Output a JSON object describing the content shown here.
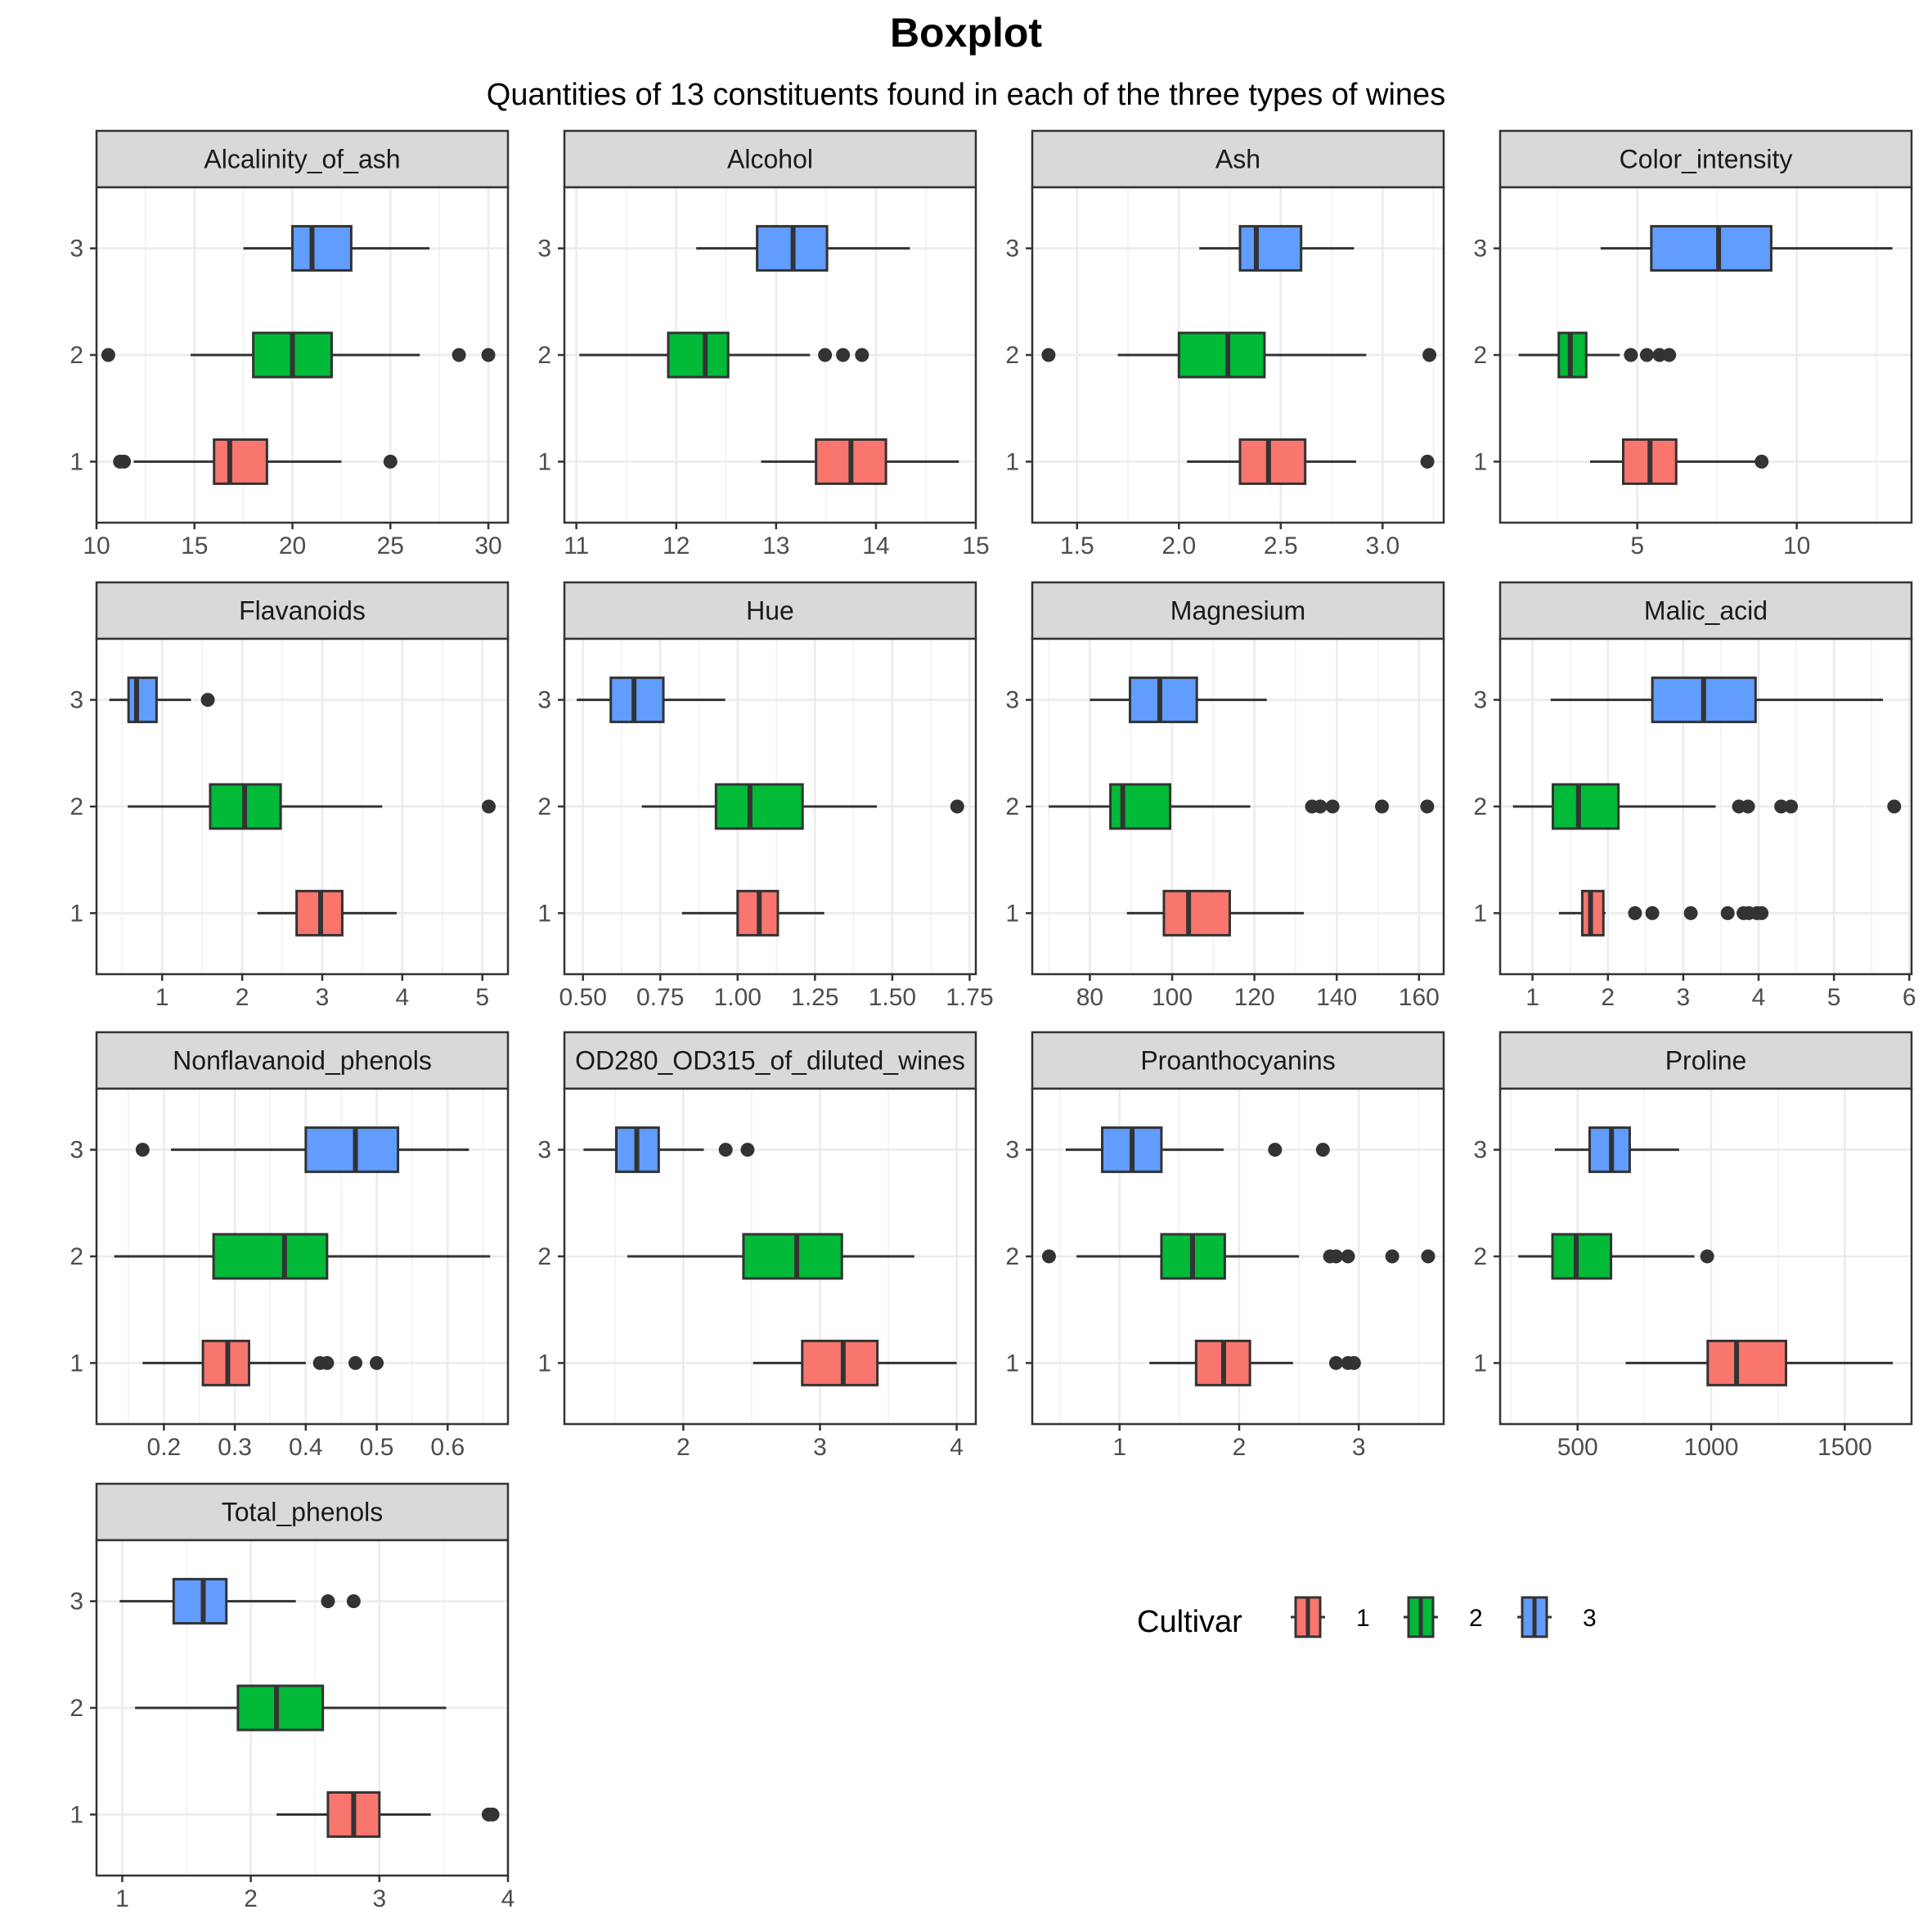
{
  "title": "Boxplot",
  "subtitle": "Quantities of 13 constituents found in each of the three types of wines",
  "colors": {
    "1": "#F8766D",
    "2": "#00BA38",
    "3": "#619CFF"
  },
  "legend": {
    "title": "Cultivar",
    "items": [
      "1",
      "2",
      "3"
    ]
  },
  "chart_data": {
    "type": "boxplot",
    "orientation": "horizontal",
    "facet_by": "Constituent",
    "y_categories": [
      "1",
      "2",
      "3"
    ],
    "grid": true,
    "legend_placement": "bottom-right",
    "panels": [
      {
        "name": "Alcalinity_of_ash",
        "xlim": [
          10.0,
          31.0
        ],
        "ticks": [
          10,
          15,
          20,
          25,
          30
        ],
        "tick_labels": [
          "10",
          "15",
          "20",
          "25",
          "30"
        ],
        "boxes": [
          {
            "cultivar": "1",
            "min": 11.9,
            "q1": 16.0,
            "median": 16.8,
            "q3": 18.7,
            "max": 22.5,
            "outliers": [
              11.2,
              11.4,
              25.0
            ]
          },
          {
            "cultivar": "2",
            "min": 14.8,
            "q1": 18.0,
            "median": 20.0,
            "q3": 22.0,
            "max": 26.5,
            "outliers": [
              10.6,
              28.5,
              30.0
            ]
          },
          {
            "cultivar": "3",
            "min": 17.5,
            "q1": 20.0,
            "median": 21.0,
            "q3": 23.0,
            "max": 27.0,
            "outliers": []
          }
        ]
      },
      {
        "name": "Alcohol",
        "xlim": [
          10.88,
          15.0
        ],
        "ticks": [
          11,
          12,
          13,
          14,
          15
        ],
        "tick_labels": [
          "11",
          "12",
          "13",
          "14",
          "15"
        ],
        "boxes": [
          {
            "cultivar": "1",
            "min": 12.85,
            "q1": 13.4,
            "median": 13.75,
            "q3": 14.1,
            "max": 14.83,
            "outliers": []
          },
          {
            "cultivar": "2",
            "min": 11.03,
            "q1": 11.92,
            "median": 12.29,
            "q3": 12.52,
            "max": 13.34,
            "outliers": [
              13.49,
              13.67,
              13.86
            ]
          },
          {
            "cultivar": "3",
            "min": 12.2,
            "q1": 12.81,
            "median": 13.17,
            "q3": 13.51,
            "max": 14.34,
            "outliers": []
          }
        ]
      },
      {
        "name": "Ash",
        "xlim": [
          1.28,
          3.3
        ],
        "ticks": [
          1.5,
          2.0,
          2.5,
          3.0
        ],
        "tick_labels": [
          "1.5",
          "2.0",
          "2.5",
          "3.0"
        ],
        "boxes": [
          {
            "cultivar": "1",
            "min": 2.04,
            "q1": 2.3,
            "median": 2.44,
            "q3": 2.62,
            "max": 2.87,
            "outliers": [
              3.22
            ]
          },
          {
            "cultivar": "2",
            "min": 1.7,
            "q1": 2.0,
            "median": 2.24,
            "q3": 2.42,
            "max": 2.92,
            "outliers": [
              1.36,
              3.23
            ]
          },
          {
            "cultivar": "3",
            "min": 2.1,
            "q1": 2.3,
            "median": 2.38,
            "q3": 2.6,
            "max": 2.86,
            "outliers": []
          }
        ]
      },
      {
        "name": "Color_intensity",
        "xlim": [
          0.7,
          13.6
        ],
        "ticks": [
          5,
          10
        ],
        "tick_labels": [
          "5",
          "10"
        ],
        "boxes": [
          {
            "cultivar": "1",
            "min": 3.52,
            "q1": 4.56,
            "median": 5.4,
            "q3": 6.22,
            "max": 8.9,
            "outliers": [
              8.9
            ]
          },
          {
            "cultivar": "2",
            "min": 1.28,
            "q1": 2.54,
            "median": 2.9,
            "q3": 3.4,
            "max": 4.45,
            "outliers": [
              4.8,
              5.3,
              5.7,
              6.0
            ]
          },
          {
            "cultivar": "3",
            "min": 3.85,
            "q1": 5.44,
            "median": 7.55,
            "q3": 9.2,
            "max": 13.0,
            "outliers": []
          }
        ]
      },
      {
        "name": "Flavanoids",
        "xlim": [
          0.18,
          5.32
        ],
        "ticks": [
          1,
          2,
          3,
          4,
          5
        ],
        "tick_labels": [
          "1",
          "2",
          "3",
          "4",
          "5"
        ],
        "boxes": [
          {
            "cultivar": "1",
            "min": 2.19,
            "q1": 2.68,
            "median": 2.98,
            "q3": 3.25,
            "max": 3.93,
            "outliers": []
          },
          {
            "cultivar": "2",
            "min": 0.57,
            "q1": 1.6,
            "median": 2.03,
            "q3": 2.48,
            "max": 3.75,
            "outliers": [
              5.08
            ]
          },
          {
            "cultivar": "3",
            "min": 0.34,
            "q1": 0.58,
            "median": 0.68,
            "q3": 0.93,
            "max": 1.36,
            "outliers": [
              1.57
            ]
          }
        ]
      },
      {
        "name": "Hue",
        "xlim": [
          0.44,
          1.77
        ],
        "ticks": [
          0.5,
          0.75,
          1.0,
          1.25,
          1.5,
          1.75
        ],
        "tick_labels": [
          "0.50",
          "0.75",
          "1.00",
          "1.25",
          "1.50",
          "1.75"
        ],
        "boxes": [
          {
            "cultivar": "1",
            "min": 0.82,
            "q1": 1.0,
            "median": 1.07,
            "q3": 1.13,
            "max": 1.28,
            "outliers": []
          },
          {
            "cultivar": "2",
            "min": 0.69,
            "q1": 0.93,
            "median": 1.04,
            "q3": 1.21,
            "max": 1.45,
            "outliers": [
              1.71
            ]
          },
          {
            "cultivar": "3",
            "min": 0.48,
            "q1": 0.59,
            "median": 0.665,
            "q3": 0.76,
            "max": 0.96,
            "outliers": []
          }
        ]
      },
      {
        "name": "Magnesium",
        "xlim": [
          66.0,
          166.0
        ],
        "ticks": [
          80,
          100,
          120,
          140,
          160
        ],
        "tick_labels": [
          "80",
          "100",
          "120",
          "140",
          "160"
        ],
        "boxes": [
          {
            "cultivar": "1",
            "min": 89,
            "q1": 98,
            "median": 104,
            "q3": 114,
            "max": 132,
            "outliers": []
          },
          {
            "cultivar": "2",
            "min": 70,
            "q1": 85,
            "median": 88,
            "q3": 99.5,
            "max": 119,
            "outliers": [
              134,
              136,
              139,
              151,
              162
            ]
          },
          {
            "cultivar": "3",
            "min": 80,
            "q1": 89.75,
            "median": 97,
            "q3": 106,
            "max": 123,
            "outliers": []
          }
        ]
      },
      {
        "name": "Malic_acid",
        "xlim": [
          0.57,
          6.03
        ],
        "ticks": [
          1,
          2,
          3,
          4,
          5,
          6
        ],
        "tick_labels": [
          "1",
          "2",
          "3",
          "4",
          "5",
          "6"
        ],
        "boxes": [
          {
            "cultivar": "1",
            "min": 1.35,
            "q1": 1.66,
            "median": 1.77,
            "q3": 1.94,
            "max": 1.97,
            "outliers": [
              2.36,
              2.59,
              3.1,
              3.59,
              3.8,
              3.87,
              3.98,
              4.04
            ]
          },
          {
            "cultivar": "2",
            "min": 0.74,
            "q1": 1.27,
            "median": 1.61,
            "q3": 2.14,
            "max": 3.43,
            "outliers": [
              3.74,
              3.86,
              4.3,
              4.43,
              5.8
            ]
          },
          {
            "cultivar": "3",
            "min": 1.24,
            "q1": 2.59,
            "median": 3.27,
            "q3": 3.96,
            "max": 5.65,
            "outliers": []
          }
        ]
      },
      {
        "name": "Nonflavanoid_phenols",
        "xlim": [
          0.105,
          0.685
        ],
        "ticks": [
          0.2,
          0.3,
          0.4,
          0.5,
          0.6
        ],
        "tick_labels": [
          "0.2",
          "0.3",
          "0.4",
          "0.5",
          "0.6"
        ],
        "boxes": [
          {
            "cultivar": "1",
            "min": 0.17,
            "q1": 0.255,
            "median": 0.29,
            "q3": 0.32,
            "max": 0.4,
            "outliers": [
              0.42,
              0.43,
              0.47,
              0.5
            ]
          },
          {
            "cultivar": "2",
            "min": 0.13,
            "q1": 0.27,
            "median": 0.37,
            "q3": 0.43,
            "max": 0.66,
            "outliers": []
          },
          {
            "cultivar": "3",
            "min": 0.21,
            "q1": 0.4,
            "median": 0.47,
            "q3": 0.53,
            "max": 0.63,
            "outliers": [
              0.17
            ]
          }
        ]
      },
      {
        "name": "OD280_OD315_of_diluted_wines",
        "xlim": [
          1.13,
          4.14
        ],
        "ticks": [
          2,
          3,
          4
        ],
        "tick_labels": [
          "2",
          "3",
          "4"
        ],
        "boxes": [
          {
            "cultivar": "1",
            "min": 2.51,
            "q1": 2.87,
            "median": 3.17,
            "q3": 3.42,
            "max": 4.0,
            "outliers": []
          },
          {
            "cultivar": "2",
            "min": 1.59,
            "q1": 2.44,
            "median": 2.83,
            "q3": 3.16,
            "max": 3.69,
            "outliers": []
          },
          {
            "cultivar": "3",
            "min": 1.27,
            "q1": 1.51,
            "median": 1.66,
            "q3": 1.82,
            "max": 2.15,
            "outliers": [
              2.31,
              2.47
            ]
          }
        ]
      },
      {
        "name": "Proanthocyanins",
        "xlim": [
          0.27,
          3.71
        ],
        "ticks": [
          1,
          2,
          3
        ],
        "tick_labels": [
          "1",
          "2",
          "3"
        ],
        "boxes": [
          {
            "cultivar": "1",
            "min": 1.25,
            "q1": 1.64,
            "median": 1.87,
            "q3": 2.09,
            "max": 2.45,
            "outliers": [
              2.81,
              2.91,
              2.96
            ]
          },
          {
            "cultivar": "2",
            "min": 0.64,
            "q1": 1.35,
            "median": 1.61,
            "q3": 1.88,
            "max": 2.5,
            "outliers": [
              0.41,
              2.76,
              2.81,
              2.91,
              3.28,
              3.58
            ]
          },
          {
            "cultivar": "3",
            "min": 0.55,
            "q1": 0.855,
            "median": 1.105,
            "q3": 1.35,
            "max": 1.87,
            "outliers": [
              2.3,
              2.7
            ]
          }
        ]
      },
      {
        "name": "Proline",
        "xlim": [
          210,
          1750
        ],
        "ticks": [
          500,
          1000,
          1500
        ],
        "tick_labels": [
          "500",
          "1000",
          "1500"
        ],
        "boxes": [
          {
            "cultivar": "1",
            "min": 680,
            "q1": 987,
            "median": 1095,
            "q3": 1280,
            "max": 1680,
            "outliers": []
          },
          {
            "cultivar": "2",
            "min": 278,
            "q1": 406,
            "median": 495,
            "q3": 625,
            "max": 937,
            "outliers": [
              985
            ]
          },
          {
            "cultivar": "3",
            "min": 415,
            "q1": 545,
            "median": 627,
            "q3": 695,
            "max": 880,
            "outliers": []
          }
        ]
      },
      {
        "name": "Total_phenols",
        "xlim": [
          0.8,
          4.0
        ],
        "ticks": [
          1,
          2,
          3,
          4
        ],
        "tick_labels": [
          "1",
          "2",
          "3",
          "4"
        ],
        "boxes": [
          {
            "cultivar": "1",
            "min": 2.2,
            "q1": 2.6,
            "median": 2.8,
            "q3": 3.0,
            "max": 3.4,
            "outliers": [
              3.85,
              3.88
            ]
          },
          {
            "cultivar": "2",
            "min": 1.1,
            "q1": 1.9,
            "median": 2.2,
            "q3": 2.56,
            "max": 3.52,
            "outliers": []
          },
          {
            "cultivar": "3",
            "min": 0.98,
            "q1": 1.4,
            "median": 1.63,
            "q3": 1.81,
            "max": 2.35,
            "outliers": [
              2.6,
              2.8
            ]
          }
        ]
      }
    ]
  }
}
